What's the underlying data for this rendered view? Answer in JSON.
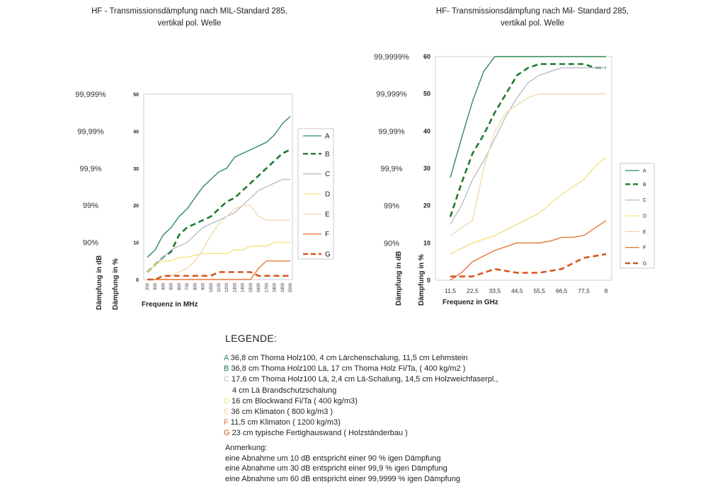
{
  "titles": {
    "left_line1": "HF - Transmissionsdämpfung nach MIL-Standard 285,",
    "left_line2": "vertikal pol. Welle",
    "right_line1": "HF- Transmissionsdämpfung nach Mil- Standard 285,",
    "right_line2": "vertikal pol. Welle"
  },
  "series_colors": {
    "A": "#2e8b57",
    "B": "#1e7a2e",
    "C": "#b9bec4",
    "D": "#f3e27a",
    "E": "#f1d9b0",
    "F": "#e8773a",
    "G": "#d6551e"
  },
  "chart_data": [
    {
      "type": "line",
      "xlabel": "Frequenz in MHz",
      "ylabel": "Dämpfung in dB",
      "y2label": "Dämpfung in %",
      "ylim": [
        0,
        50
      ],
      "y_ticks": [
        "0",
        "10",
        "20",
        "30",
        "40",
        "50"
      ],
      "percent_ticks": [
        {
          "value": 10,
          "label": "90%"
        },
        {
          "value": 20,
          "label": "99%"
        },
        {
          "value": 30,
          "label": "99,9%"
        },
        {
          "value": 40,
          "label": "99,99%"
        },
        {
          "value": 50,
          "label": "99,999%"
        }
      ],
      "categories": [
        "200",
        "300",
        "400",
        "500",
        "600",
        "700",
        "800",
        "900",
        "1000",
        "1100",
        "1200",
        "1300",
        "1400",
        "1500",
        "1600",
        "1700",
        "1800",
        "1900",
        "2000"
      ],
      "grid": false,
      "legend_position": "right",
      "series": [
        {
          "name": "A",
          "style": "solid",
          "values": [
            6,
            8,
            12,
            14,
            17,
            19,
            22,
            25,
            27,
            29,
            30,
            33,
            34,
            35,
            36,
            37,
            39,
            42,
            44
          ]
        },
        {
          "name": "B",
          "style": "dashed",
          "values": [
            2,
            4,
            6,
            7.5,
            12,
            14,
            15,
            16,
            17,
            19,
            21,
            22,
            24,
            26,
            28,
            30,
            32,
            34,
            35
          ]
        },
        {
          "name": "C",
          "style": "solid",
          "values": [
            2,
            4,
            6,
            8,
            9,
            10,
            12,
            14,
            15,
            16,
            17,
            18,
            20,
            22,
            24,
            25,
            26,
            27,
            27
          ]
        },
        {
          "name": "D",
          "style": "solid",
          "values": [
            2,
            4,
            5,
            5,
            6,
            6,
            6.5,
            7,
            7,
            7,
            7,
            8,
            8,
            9,
            9,
            9,
            10,
            10,
            10
          ]
        },
        {
          "name": "E",
          "style": "solid",
          "values": [
            0,
            0,
            0,
            1,
            2,
            3,
            5,
            8,
            12,
            15,
            17,
            19,
            20,
            20,
            17,
            16,
            16,
            16,
            16
          ]
        },
        {
          "name": "F",
          "style": "solid",
          "values": [
            0,
            0,
            0,
            0,
            0,
            0,
            0,
            0,
            0,
            0,
            0,
            0,
            0,
            0,
            3,
            5,
            5,
            5,
            5
          ]
        },
        {
          "name": "G",
          "style": "dashed",
          "values": [
            0,
            0,
            1,
            1,
            1,
            1,
            1,
            1,
            1,
            2,
            2,
            2,
            2,
            2,
            1,
            1,
            1,
            1,
            1
          ]
        }
      ]
    },
    {
      "type": "line",
      "xlabel": "Frequenz in GHz",
      "ylabel": "Dämpfung in dB",
      "y2label": "Dämpfung in %",
      "ylim": [
        0,
        60
      ],
      "y_ticks": [
        "0",
        "10",
        "20",
        "30",
        "40",
        "50",
        "60"
      ],
      "percent_ticks": [
        {
          "value": 10,
          "label": "90%"
        },
        {
          "value": 20,
          "label": "99%"
        },
        {
          "value": 30,
          "label": "99,9%"
        },
        {
          "value": 40,
          "label": "99,99%"
        },
        {
          "value": 50,
          "label": "99,999%"
        },
        {
          "value": 60,
          "label": "99,9999%"
        }
      ],
      "categories": [
        "11,5",
        "",
        "22,5",
        "",
        "33,5",
        "",
        "44,5",
        "",
        "55,5",
        "",
        "66,5",
        "",
        "77,5",
        "",
        "8"
      ],
      "grid": false,
      "legend_position": "right",
      "series": [
        {
          "name": "A",
          "style": "solid",
          "values": [
            27.5,
            38,
            48,
            56,
            61,
            61,
            61,
            61,
            61,
            61,
            61,
            61,
            61,
            61,
            61
          ]
        },
        {
          "name": "B",
          "style": "dashed",
          "values": [
            17,
            26,
            34,
            39,
            45,
            50,
            55,
            57,
            58,
            58,
            58,
            58,
            58,
            57,
            57
          ]
        },
        {
          "name": "C",
          "style": "solid",
          "values": [
            15,
            20,
            27,
            32,
            38,
            44,
            49,
            53,
            55,
            56,
            57,
            57,
            57,
            57,
            57
          ]
        },
        {
          "name": "D",
          "style": "solid",
          "values": [
            7,
            8.5,
            10,
            11,
            12,
            13.5,
            15,
            16.5,
            18,
            20.5,
            23,
            25,
            27,
            30.5,
            33
          ]
        },
        {
          "name": "E",
          "style": "solid",
          "values": [
            12,
            14,
            16,
            30,
            40,
            45,
            47,
            49,
            50,
            50,
            50,
            50,
            50,
            50,
            50
          ]
        },
        {
          "name": "F",
          "style": "solid",
          "values": [
            0,
            2,
            5,
            6.5,
            8,
            9,
            10,
            10,
            10,
            10.5,
            11.5,
            11.5,
            12,
            14,
            16
          ]
        },
        {
          "name": "G",
          "style": "dashed",
          "values": [
            1,
            1,
            1,
            2,
            3,
            2.5,
            2,
            2,
            2,
            2.5,
            3,
            4.5,
            6,
            6.5,
            7
          ]
        }
      ]
    }
  ],
  "legend": {
    "heading": "LEGENDE:",
    "items": [
      {
        "code": "A",
        "text": " 36,8 cm Thoma Holz100, 4 cm Lärchenschalung, 11,5 cm Lehmstein"
      },
      {
        "code": "B",
        "text": " 36,8 cm Thoma Holz100 Lä, 17 cm Thoma Holz Fi/Ta, ( 400 kg/m2 )"
      },
      {
        "code": "C",
        "text": " 17,6 cm Thoma Holz100 Lä, 2,4 cm Lä-Schalung, 14,5 cm Holzweichfaserpl.,",
        "cont": "4 cm Lä Brandschutzschalung"
      },
      {
        "code": "D",
        "text": " 16 cm Blockwand Fi/Ta ( 400 kg/m3)"
      },
      {
        "code": "E",
        "text": " 36 cm Klimaton ( 800 kg/m3 )"
      },
      {
        "code": "F",
        "text": " 11,5 cm Klimaton ( 1200 kg/m3)"
      },
      {
        "code": "G",
        "text": " 23 cm typische Fertighauswand ( Holzständerbau )"
      }
    ]
  },
  "note": {
    "heading": "Anmerkung:",
    "lines": [
      "eine Abnahme um 10 dB entspricht einer 90 % igen Dämpfung",
      "eine Abnahme um 30 dB entspricht einer 99,9 % igen Dämpfung",
      "eine Abnahme um 60 dB entspricht einer 99,9999 % igen Dämpfung"
    ]
  }
}
